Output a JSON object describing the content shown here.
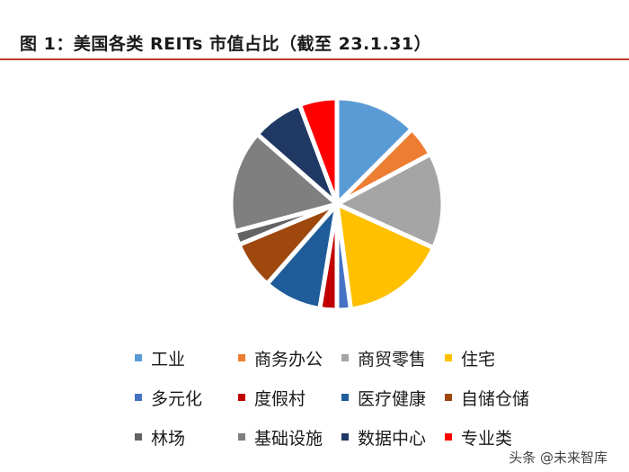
{
  "header": {
    "title": "图 1：美国各类 REITs 市值占比（截至 23.1.31）"
  },
  "watermark": "头条 @未来智库",
  "chart_data": {
    "type": "pie",
    "title": "图 1：美国各类 REITs 市值占比（截至 23.1.31）",
    "start_angle_deg": 90,
    "direction": "clockwise",
    "legend_position": "bottom",
    "slices": [
      {
        "label": "工业",
        "value": 12.0,
        "color": "#5b9bd5"
      },
      {
        "label": "商务办公",
        "value": 4.5,
        "color": "#ed7d31"
      },
      {
        "label": "商贸零售",
        "value": 14.0,
        "color": "#a5a5a5"
      },
      {
        "label": "住宅",
        "value": 15.5,
        "color": "#ffc000"
      },
      {
        "label": "多元化",
        "value": 2.0,
        "color": "#4472c4"
      },
      {
        "label": "度假村",
        "value": 2.5,
        "color": "#c00000"
      },
      {
        "label": "医疗健康",
        "value": 8.5,
        "color": "#1f5c99"
      },
      {
        "label": "自储仓储",
        "value": 7.0,
        "color": "#9e480e"
      },
      {
        "label": "林场",
        "value": 2.0,
        "color": "#636363"
      },
      {
        "label": "基础设施",
        "value": 15.0,
        "color": "#7f7f7f"
      },
      {
        "label": "数据中心",
        "value": 7.5,
        "color": "#1f3864"
      },
      {
        "label": "专业类",
        "value": 5.5,
        "color": "#ff0000"
      }
    ]
  }
}
